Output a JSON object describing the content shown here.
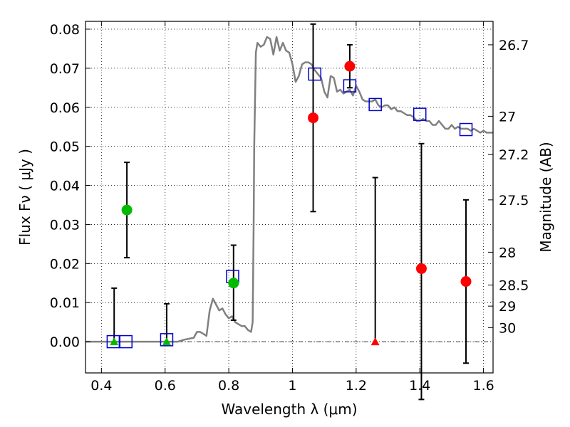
{
  "chart_data": {
    "type": "scatter",
    "xlabel": "Wavelength  λ (μm)",
    "ylabel": "Flux  Fν  ( μJy )",
    "ylabel_right": "Magnitude (AB)",
    "xlim": [
      0.35,
      1.63
    ],
    "ylim": [
      -0.008,
      0.082
    ],
    "grid": true,
    "x_ticks": [
      0.4,
      0.6,
      0.8,
      1.0,
      1.2,
      1.4,
      1.6
    ],
    "x_tick_labels": [
      "0.4",
      "0.6",
      "0.8",
      "1",
      "1.2",
      "1.4",
      "1.6"
    ],
    "y_ticks": [
      0.0,
      0.01,
      0.02,
      0.03,
      0.04,
      0.05,
      0.06,
      0.07,
      0.08
    ],
    "y_tick_labels": [
      "0.00",
      "0.01",
      "0.02",
      "0.03",
      "0.04",
      "0.05",
      "0.06",
      "0.07",
      "0.08"
    ],
    "mag_ticks": [
      {
        "label": "26.7",
        "flux": 0.076
      },
      {
        "label": "27",
        "flux": 0.0577
      },
      {
        "label": "27.2",
        "flux": 0.0479
      },
      {
        "label": "27.5",
        "flux": 0.0363
      },
      {
        "label": "28",
        "flux": 0.0229
      },
      {
        "label": "28.5",
        "flux": 0.0145
      },
      {
        "label": "29",
        "flux": 0.0091
      },
      {
        "label": "30",
        "flux": 0.0036
      }
    ],
    "colors": {
      "model": "#808080",
      "green": "#00bb00",
      "red": "#ff0000",
      "square": "#0000cc",
      "errorbar": "#000000"
    },
    "model_spectrum": {
      "x": [
        0.35,
        0.6,
        0.64,
        0.66,
        0.69,
        0.7,
        0.71,
        0.72,
        0.73,
        0.74,
        0.75,
        0.76,
        0.77,
        0.78,
        0.79,
        0.8,
        0.81,
        0.82,
        0.83,
        0.84,
        0.85,
        0.86,
        0.87,
        0.875,
        0.878,
        0.88,
        0.885,
        0.89,
        0.9,
        0.91,
        0.92,
        0.93,
        0.94,
        0.95,
        0.96,
        0.97,
        0.98,
        0.99,
        1.0,
        1.01,
        1.02,
        1.03,
        1.04,
        1.05,
        1.06,
        1.07,
        1.08,
        1.09,
        1.1,
        1.11,
        1.12,
        1.13,
        1.14,
        1.15,
        1.16,
        1.17,
        1.18,
        1.19,
        1.2,
        1.21,
        1.22,
        1.23,
        1.24,
        1.25,
        1.26,
        1.27,
        1.28,
        1.29,
        1.3,
        1.31,
        1.32,
        1.33,
        1.34,
        1.35,
        1.36,
        1.37,
        1.38,
        1.39,
        1.4,
        1.41,
        1.42,
        1.43,
        1.44,
        1.45,
        1.46,
        1.47,
        1.48,
        1.49,
        1.5,
        1.51,
        1.52,
        1.53,
        1.54,
        1.55,
        1.56,
        1.57,
        1.58,
        1.59,
        1.6,
        1.61,
        1.63
      ],
      "y": [
        0.0,
        0.0,
        0.0,
        0.0005,
        0.001,
        0.0025,
        0.0025,
        0.002,
        0.0015,
        0.008,
        0.011,
        0.0095,
        0.008,
        0.0085,
        0.007,
        0.006,
        0.0065,
        0.005,
        0.0045,
        0.004,
        0.004,
        0.003,
        0.0025,
        0.005,
        0.03,
        0.05,
        0.074,
        0.0765,
        0.0755,
        0.076,
        0.078,
        0.0775,
        0.0735,
        0.078,
        0.0745,
        0.0765,
        0.0745,
        0.074,
        0.071,
        0.0665,
        0.068,
        0.071,
        0.0715,
        0.0715,
        0.071,
        0.0695,
        0.0685,
        0.0675,
        0.064,
        0.0625,
        0.068,
        0.0675,
        0.064,
        0.0645,
        0.0635,
        0.064,
        0.0645,
        0.063,
        0.0655,
        0.064,
        0.062,
        0.0615,
        0.0615,
        0.0615,
        0.062,
        0.0605,
        0.06,
        0.0605,
        0.0605,
        0.0595,
        0.06,
        0.059,
        0.059,
        0.0585,
        0.058,
        0.058,
        0.0575,
        0.0565,
        0.0565,
        0.057,
        0.0565,
        0.0565,
        0.0555,
        0.0555,
        0.0565,
        0.0555,
        0.0545,
        0.0545,
        0.0555,
        0.0545,
        0.055,
        0.0545,
        0.0545,
        0.0545,
        0.054,
        0.0545,
        0.054,
        0.0535,
        0.054,
        0.0535,
        0.0535
      ]
    },
    "green_points": [
      {
        "x": 0.48,
        "y": 0.0337,
        "err_low": 0.0122,
        "err_high": 0.0122
      }
    ],
    "green_triangles": [
      {
        "x": 0.44,
        "y": 0.0,
        "err_low": 0.0,
        "err_high": 0.0137
      },
      {
        "x": 0.605,
        "y": 0.0,
        "err_low": 0.0,
        "err_high": 0.0097
      }
    ],
    "green_points_2": [
      {
        "x": 0.815,
        "y": 0.015,
        "err_low": 0.0095,
        "err_high": 0.0097
      }
    ],
    "red_points": [
      {
        "x": 1.065,
        "y": 0.0573,
        "err_low": 0.024,
        "err_high": 0.024
      },
      {
        "x": 1.18,
        "y": 0.0705,
        "err_low": 0.0055,
        "err_high": 0.0055
      },
      {
        "x": 1.405,
        "y": 0.0187,
        "err_low": 0.0335,
        "err_high": 0.032
      },
      {
        "x": 1.545,
        "y": 0.0154,
        "err_low": 0.0209,
        "err_high": 0.0209
      }
    ],
    "red_triangles": [
      {
        "x": 1.26,
        "y": 0.0,
        "err_low": 0.0,
        "err_high": 0.042
      }
    ],
    "model_squares": [
      {
        "x": 0.437,
        "y": 0.0
      },
      {
        "x": 0.477,
        "y": 0.0
      },
      {
        "x": 0.605,
        "y": 0.0005
      },
      {
        "x": 0.812,
        "y": 0.0167
      },
      {
        "x": 1.07,
        "y": 0.0685
      },
      {
        "x": 1.18,
        "y": 0.0655
      },
      {
        "x": 1.26,
        "y": 0.0607
      },
      {
        "x": 1.4,
        "y": 0.0582
      },
      {
        "x": 1.545,
        "y": 0.0543
      }
    ]
  }
}
